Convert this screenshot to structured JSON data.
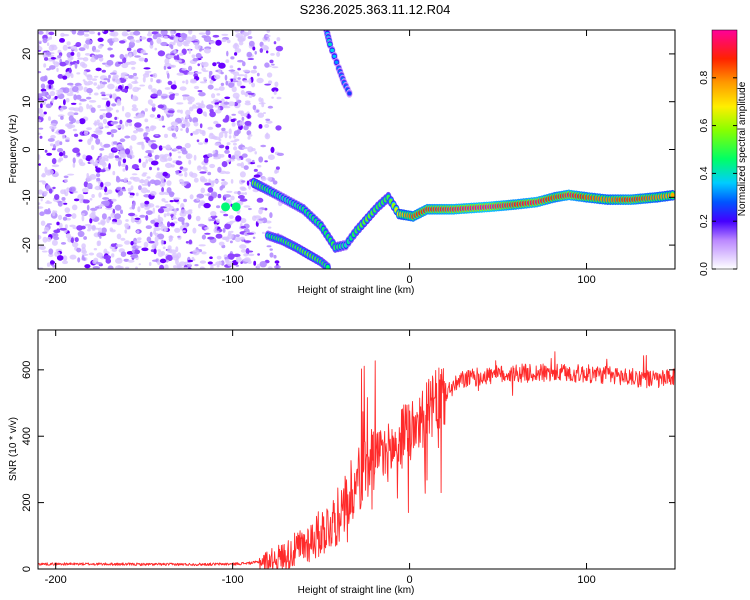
{
  "title": "S236.2025.363.11.12.R04",
  "chart_data": [
    {
      "type": "heatmap",
      "name": "spectrogram",
      "xlabel": "Height of straight line (km)",
      "ylabel": "Frequency (Hz)",
      "xlim": [
        -210,
        150
      ],
      "ylim": [
        -25,
        25
      ],
      "xticks": [
        -200,
        -100,
        0,
        100
      ],
      "yticks": [
        20,
        10,
        0,
        -10,
        -20
      ],
      "colorbar": {
        "label": "Normalized spectral amplitude",
        "ticks": [
          "0.0",
          "0.2",
          "0.4",
          "0.6",
          "0.8"
        ],
        "tick_values": [
          0.0,
          0.2,
          0.4,
          0.6,
          0.8
        ],
        "range": [
          0,
          1
        ],
        "colors": [
          "#ffffff",
          "#e8d8ff",
          "#8800ff",
          "#0000ff",
          "#00ffff",
          "#00ff00",
          "#ffff00",
          "#ff8800",
          "#ff0000",
          "#ff00aa"
        ]
      },
      "noise_region_km": [
        -210,
        -90
      ],
      "main_trace": [
        {
          "x": -88,
          "y": -7,
          "a": 0.55
        },
        {
          "x": -80,
          "y": -8.5,
          "a": 0.45
        },
        {
          "x": -70,
          "y": -10.5,
          "a": 0.4
        },
        {
          "x": -60,
          "y": -12.5,
          "a": 0.45
        },
        {
          "x": -50,
          "y": -16,
          "a": 0.45
        },
        {
          "x": -42,
          "y": -20.5,
          "a": 0.5
        },
        {
          "x": -36,
          "y": -20,
          "a": 0.4
        },
        {
          "x": -30,
          "y": -17,
          "a": 0.5
        },
        {
          "x": -24,
          "y": -14.5,
          "a": 0.55
        },
        {
          "x": -18,
          "y": -12,
          "a": 0.5
        },
        {
          "x": -12,
          "y": -10,
          "a": 0.5
        },
        {
          "x": -6,
          "y": -13.5,
          "a": 0.7
        },
        {
          "x": 2,
          "y": -14,
          "a": 0.85
        },
        {
          "x": 10,
          "y": -12.5,
          "a": 0.9
        },
        {
          "x": 25,
          "y": -12.5,
          "a": 0.95
        },
        {
          "x": 45,
          "y": -12,
          "a": 1.0
        },
        {
          "x": 60,
          "y": -11.5,
          "a": 0.9
        },
        {
          "x": 72,
          "y": -11,
          "a": 0.95
        },
        {
          "x": 82,
          "y": -10,
          "a": 0.85
        },
        {
          "x": 90,
          "y": -9.5,
          "a": 0.95
        },
        {
          "x": 100,
          "y": -10,
          "a": 0.85
        },
        {
          "x": 112,
          "y": -10.5,
          "a": 0.8
        },
        {
          "x": 125,
          "y": -10.5,
          "a": 0.9
        },
        {
          "x": 140,
          "y": -10,
          "a": 0.8
        },
        {
          "x": 150,
          "y": -9.5,
          "a": 0.75
        }
      ],
      "lower_trace": [
        {
          "x": -80,
          "y": -18,
          "a": 0.45
        },
        {
          "x": -72,
          "y": -19,
          "a": 0.5
        },
        {
          "x": -64,
          "y": -20.5,
          "a": 0.5
        },
        {
          "x": -57,
          "y": -22,
          "a": 0.55
        },
        {
          "x": -50,
          "y": -23.5,
          "a": 0.5
        },
        {
          "x": -45,
          "y": -25,
          "a": 0.45
        }
      ],
      "upper_trace": [
        {
          "x": -47,
          "y": 25,
          "a": 0.35
        },
        {
          "x": -45,
          "y": 22,
          "a": 0.4
        },
        {
          "x": -40,
          "y": 17,
          "a": 0.3
        },
        {
          "x": -37,
          "y": 14,
          "a": 0.3
        },
        {
          "x": -33,
          "y": 11,
          "a": 0.25
        }
      ],
      "isolated_blobs": [
        {
          "x": -104,
          "y": -12,
          "a": 0.45
        },
        {
          "x": -98,
          "y": -12,
          "a": 0.45
        }
      ]
    },
    {
      "type": "line",
      "name": "snr",
      "xlabel": "Height of straight line (km)",
      "ylabel": "SNR (10 * v/v)",
      "xlim": [
        -210,
        150
      ],
      "ylim": [
        0,
        720
      ],
      "xticks": [
        -200,
        -100,
        0,
        100
      ],
      "yticks": [
        0,
        200,
        400,
        600
      ],
      "color": "#ff2a2a",
      "series": [
        {
          "name": "SNR",
          "x": [
            -210,
            -180,
            -150,
            -120,
            -100,
            -90,
            -80,
            -70,
            -60,
            -50,
            -40,
            -35,
            -30,
            -25,
            -20,
            -15,
            -10,
            -5,
            0,
            5,
            10,
            15,
            20,
            25,
            30,
            40,
            50,
            60,
            70,
            80,
            90,
            100,
            110,
            120,
            130,
            140,
            150
          ],
          "values": [
            15,
            15,
            14,
            14,
            15,
            18,
            25,
            40,
            70,
            110,
            160,
            210,
            260,
            300,
            320,
            340,
            360,
            390,
            430,
            450,
            470,
            500,
            530,
            550,
            570,
            580,
            585,
            590,
            590,
            590,
            590,
            588,
            585,
            580,
            575,
            570,
            575
          ]
        }
      ]
    }
  ]
}
